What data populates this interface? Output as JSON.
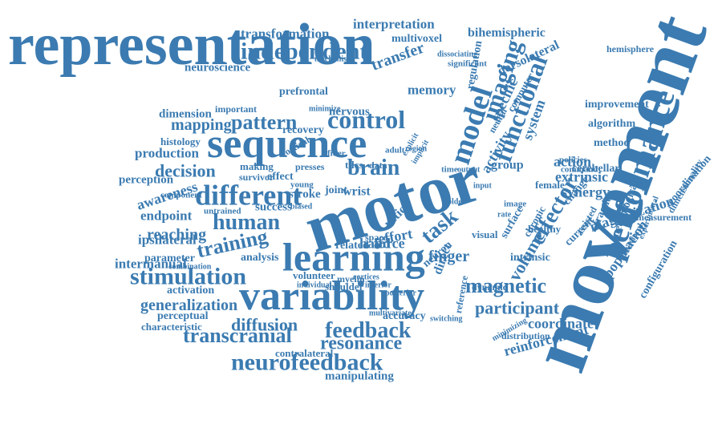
{
  "color": "#3b7bb1",
  "words": [
    "movement",
    "representation",
    "motor",
    "sequence",
    "variability",
    "learning",
    "performance",
    "different",
    "model",
    "control",
    "imaging",
    "functional",
    "independent",
    "feedback",
    "stimulation",
    "neurofeedback",
    "magnetic",
    "effector",
    "training",
    "brain",
    "task",
    "transcranial",
    "participant",
    "resonance",
    "human",
    "decision",
    "diffusion",
    "mapping",
    "pattern",
    "magnetization",
    "volume",
    "reaching",
    "population",
    "generalization",
    "reinforcement",
    "transformation",
    "interpretation",
    "bihemispheric",
    "dorsolateral",
    "transfer",
    "memory",
    "action",
    "extrinsic",
    "synergy",
    "neuroscience",
    "prefrontal",
    "multivoxel",
    "regulation",
    "specific",
    "activity",
    "system",
    "hemisphere",
    "improvement",
    "algorithm",
    "method",
    "cerebellar",
    "neurological",
    "coordination",
    "dimensionality",
    "awareness",
    "endpoint",
    "ipsilateral",
    "intermanual",
    "perception",
    "production",
    "histology",
    "dimension",
    "nervous",
    "recovery",
    "stroke",
    "success",
    "effort",
    "finger",
    "force",
    "hand",
    "ratio",
    "current",
    "fraction",
    "configuration",
    "coordinate",
    "activation",
    "perceptual",
    "characteristic",
    "analysis",
    "parameter",
    "contralateral",
    "accuracy",
    "manipulating",
    "group",
    "female",
    "healthy",
    "intrinsic",
    "direct",
    "dynamic",
    "measurement",
    "wrist",
    "joint",
    "surface",
    "chronic",
    "distribution",
    "visual",
    "image",
    "time",
    "data",
    "tdcs",
    "fiber",
    "young",
    "presses",
    "making",
    "survivor",
    "effect",
    "related",
    "space",
    "neuron",
    "volunteer",
    "shoulder",
    "myelin",
    "cortical",
    "component",
    "untrained",
    "combination",
    "important",
    "mechanism",
    "dissociating",
    "significant",
    "computer",
    "assisted",
    "change",
    "policies",
    "command",
    "behavioral",
    "experimental",
    "individual",
    "neural",
    "multivariate",
    "biased",
    "minimize",
    "switching",
    "reference",
    "minimizing",
    "cortices",
    "explicit",
    "implicit",
    "older",
    "adult",
    "region",
    "output",
    "input",
    "rate",
    "inferior",
    "posterior"
  ]
}
